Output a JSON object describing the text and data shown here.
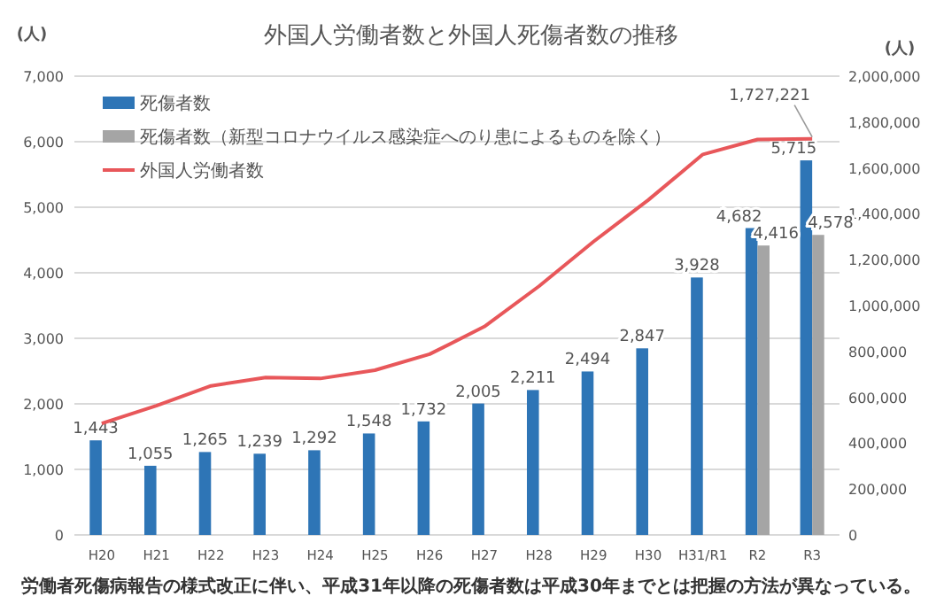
{
  "chart_data": {
    "type": "bar",
    "title": "外国人労働者数と外国人死傷者数の推移",
    "categories": [
      "H20",
      "H21",
      "H22",
      "H23",
      "H24",
      "H25",
      "H26",
      "H27",
      "H28",
      "H29",
      "H30",
      "H31/R1",
      "R2",
      "R3"
    ],
    "series": [
      {
        "name": "死傷者数",
        "color": "#2e75b6",
        "values": [
          1443,
          1055,
          1265,
          1239,
          1292,
          1548,
          1732,
          2005,
          2211,
          2494,
          2847,
          3928,
          4682,
          5715
        ],
        "value_labels": [
          "1,443",
          "1,055",
          "1,265",
          "1,239",
          "1,292",
          "1,548",
          "1,732",
          "2,005",
          "2,211",
          "2,494",
          "2,847",
          "3,928",
          "4,682",
          "5,715"
        ]
      },
      {
        "name": "死傷者数（新型コロナウイルス感染症へのり患によるものを除く）",
        "color": "#a5a5a5",
        "values": [
          null,
          null,
          null,
          null,
          null,
          null,
          null,
          null,
          null,
          null,
          null,
          null,
          4416,
          4578
        ],
        "value_labels": [
          null,
          null,
          null,
          null,
          null,
          null,
          null,
          null,
          null,
          null,
          null,
          null,
          "4,416",
          "4,578"
        ]
      },
      {
        "name": "外国人労働者数",
        "type": "line",
        "axis": "y2",
        "color": "#e8575a",
        "values": [
          486000,
          563000,
          650000,
          686000,
          682000,
          718000,
          788000,
          908000,
          1084000,
          1279000,
          1460000,
          1659000,
          1724000,
          1727221
        ],
        "value_labels": [
          null,
          null,
          null,
          null,
          null,
          null,
          null,
          null,
          null,
          null,
          null,
          null,
          null,
          "1,727,221"
        ]
      }
    ],
    "ylabel": "(人)",
    "y2label": "(人)",
    "ylim": [
      0,
      7000
    ],
    "yticks": [
      0,
      {
        "value": 1000,
        "label": "1,000"
      },
      {
        "value": 2000,
        "label": "2,000"
      },
      {
        "value": 3000,
        "label": "3,000"
      },
      {
        "value": 4000,
        "label": "4,000"
      },
      {
        "value": 5000,
        "label": "5,000"
      },
      {
        "value": 6000,
        "label": "6,000"
      },
      {
        "value": 7000,
        "label": "7,000"
      }
    ],
    "y2lim": [
      0,
      2000000
    ],
    "y2ticks": [
      0,
      {
        "value": 200000,
        "label": "200,000"
      },
      {
        "value": 400000,
        "label": "400,000"
      },
      {
        "value": 600000,
        "label": "600,000"
      },
      {
        "value": 800000,
        "label": "800,000"
      },
      {
        "value": 1000000,
        "label": "1,000,000"
      },
      {
        "value": 1200000,
        "label": "1,200,000"
      },
      {
        "value": 1400000,
        "label": "1,400,000"
      },
      {
        "value": 1600000,
        "label": "1,600,000"
      },
      {
        "value": 1800000,
        "label": "1,800,000"
      },
      {
        "value": 2000000,
        "label": "2,000,000"
      }
    ],
    "grid": "y",
    "legend": "top left",
    "marker": "none",
    "annotations": [
      "労働者死傷病報告の様式改正に伴い、平成31年以降の死傷者数は平成30年までとは把握の方法が異なっている。"
    ]
  }
}
